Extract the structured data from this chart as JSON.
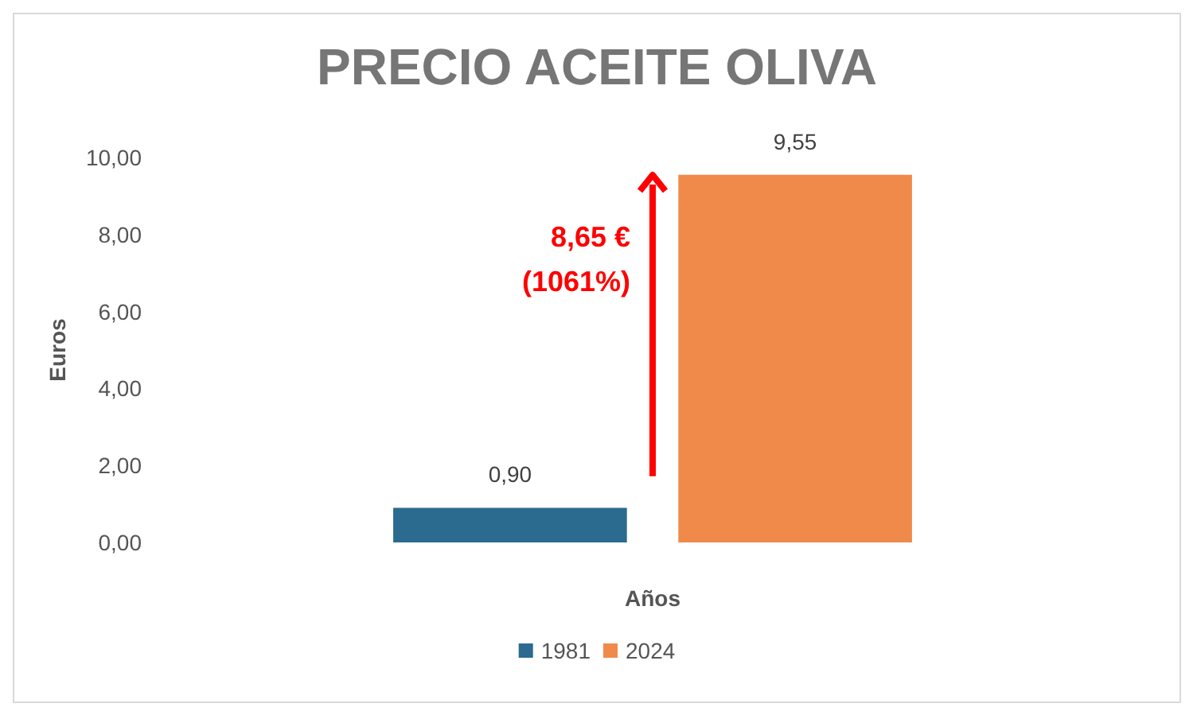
{
  "chart_data": {
    "type": "bar",
    "title": "PRECIO ACEITE OLIVA",
    "xlabel": "Años",
    "ylabel": "Euros",
    "categories": [
      null
    ],
    "series": [
      {
        "name": "1981",
        "color": "#2a6b8f",
        "values": [
          0.9
        ],
        "value_labels": [
          "0,90"
        ]
      },
      {
        "name": "2024",
        "color": "#f08a4b",
        "values": [
          9.55
        ],
        "value_labels": [
          "9,55"
        ]
      }
    ],
    "ylim": [
      0,
      10
    ],
    "yticks": [
      {
        "value": 0,
        "label": "0,00"
      },
      {
        "value": 2,
        "label": "2,00"
      },
      {
        "value": 4,
        "label": "4,00"
      },
      {
        "value": 6,
        "label": "6,00"
      },
      {
        "value": 8,
        "label": "8,00"
      },
      {
        "value": 10,
        "label": "10,00"
      }
    ],
    "grid": false,
    "legend": "bottom",
    "annotations": [
      "8,65 €\n(1061%)"
    ]
  }
}
